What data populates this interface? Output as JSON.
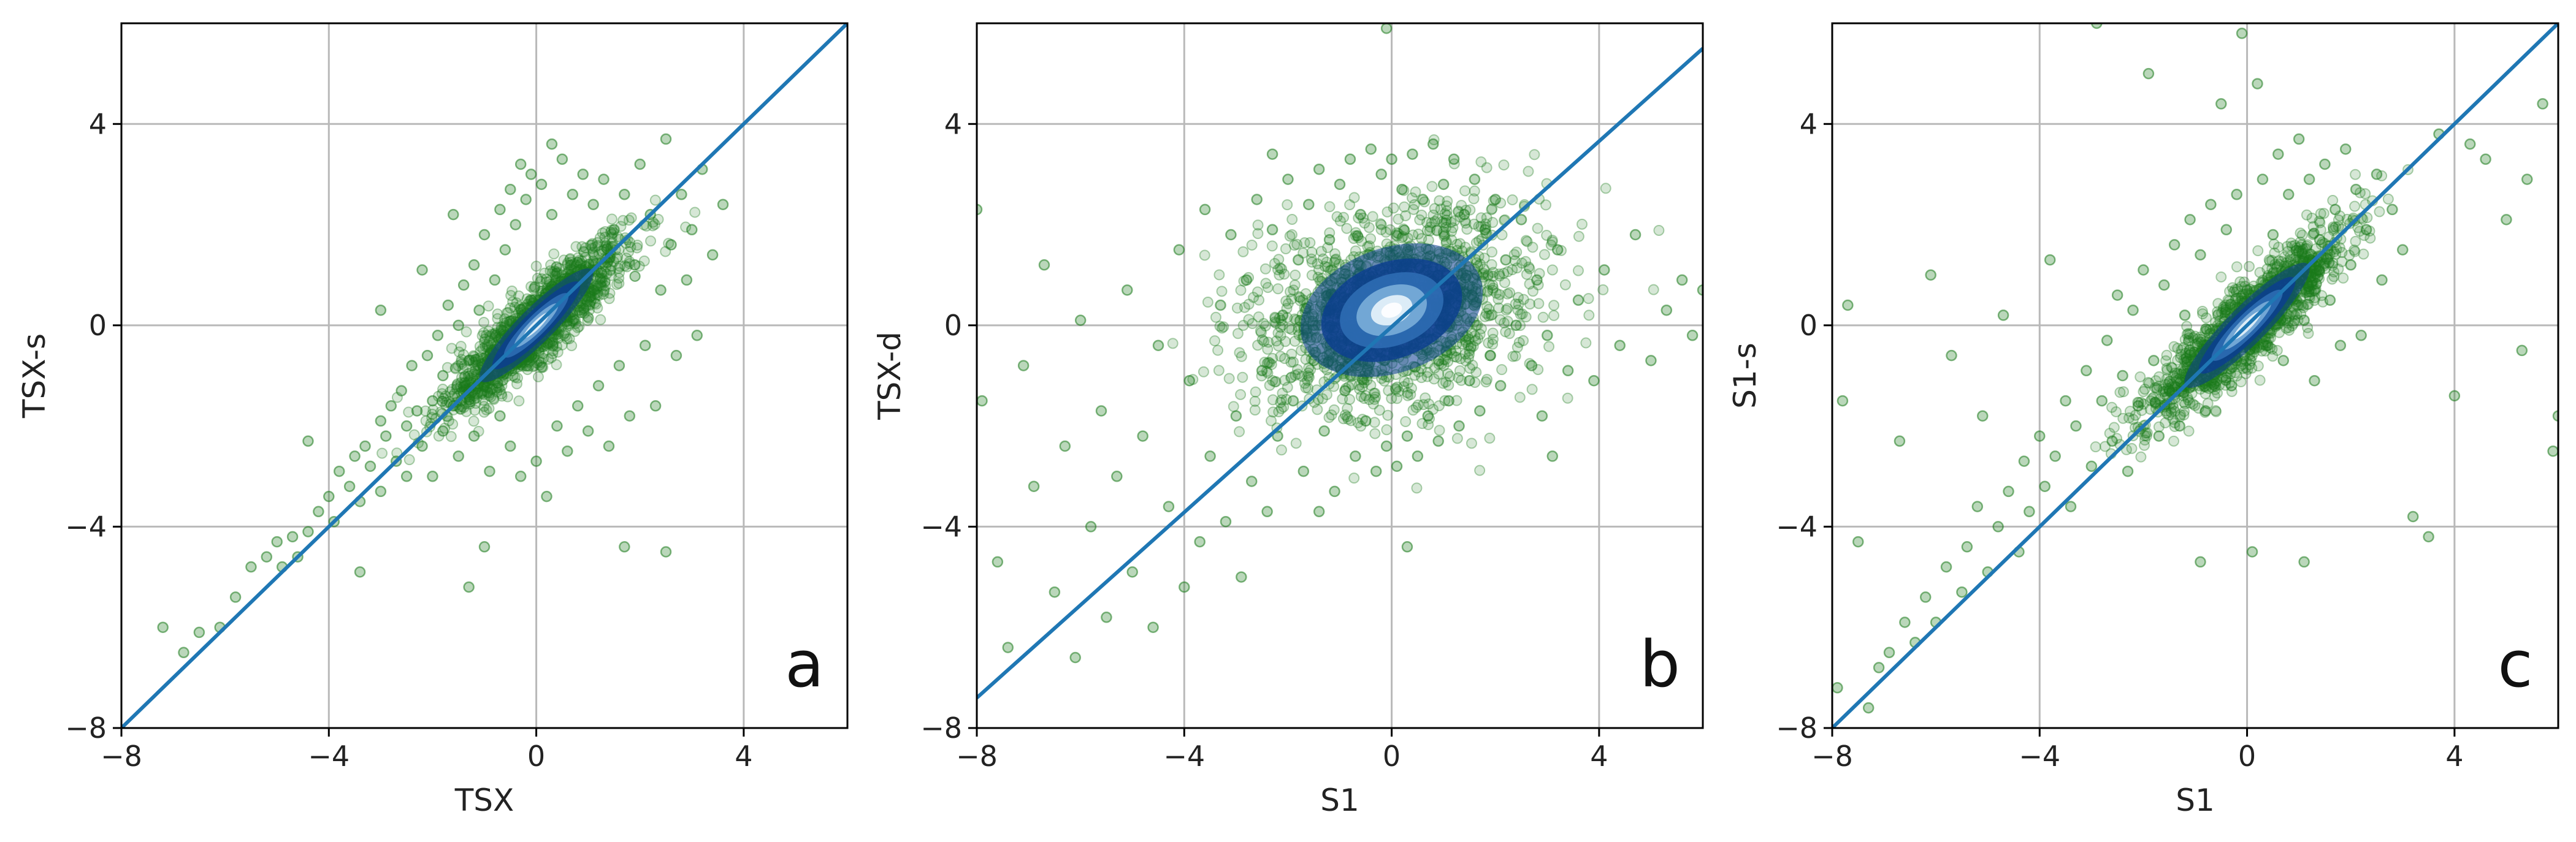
{
  "chart_data": [
    {
      "type": "scatter",
      "panel_label": "a",
      "xlabel": "TSX",
      "ylabel": "TSX-s",
      "xlim": [
        -8,
        6
      ],
      "ylim": [
        -8,
        6
      ],
      "xticks": [
        -8,
        -4,
        0,
        4
      ],
      "yticks": [
        -8,
        -4,
        0,
        4
      ],
      "grid": true,
      "reference_line": {
        "x": [
          -8,
          6
        ],
        "y": [
          -8,
          6
        ],
        "color": "#1f77b4"
      },
      "point_color": "#1a7a1a",
      "density_colors": [
        "#0b3d91",
        "#2f6eb5",
        "#7fb3dc",
        "#e8f4fb"
      ],
      "density_center": [
        0,
        0
      ],
      "density_correlation": 0.9,
      "density_spread": [
        0.5,
        0.5
      ],
      "points": [
        [
          -7.2,
          -6.0
        ],
        [
          -6.8,
          -6.5
        ],
        [
          -6.5,
          -6.1
        ],
        [
          -6.1,
          -6.0
        ],
        [
          -5.8,
          -5.4
        ],
        [
          -5.5,
          -4.8
        ],
        [
          -5.2,
          -4.6
        ],
        [
          -5.0,
          -4.3
        ],
        [
          -4.9,
          -4.8
        ],
        [
          -4.7,
          -4.2
        ],
        [
          -4.6,
          -4.6
        ],
        [
          -4.4,
          -4.1
        ],
        [
          -4.2,
          -3.7
        ],
        [
          -4.0,
          -3.4
        ],
        [
          -3.9,
          -3.9
        ],
        [
          -3.8,
          -2.9
        ],
        [
          -3.6,
          -3.2
        ],
        [
          -3.5,
          -2.6
        ],
        [
          -3.4,
          -3.5
        ],
        [
          -3.3,
          -2.4
        ],
        [
          -3.2,
          -2.8
        ],
        [
          -3.0,
          -1.9
        ],
        [
          -3.0,
          -3.3
        ],
        [
          -2.9,
          -2.2
        ],
        [
          -2.8,
          -1.6
        ],
        [
          -2.7,
          -2.7
        ],
        [
          -2.6,
          -1.3
        ],
        [
          -2.5,
          -2.0
        ],
        [
          -2.5,
          -3.0
        ],
        [
          -2.4,
          -0.8
        ],
        [
          -2.3,
          -1.7
        ],
        [
          -2.2,
          -2.4
        ],
        [
          -2.1,
          -0.6
        ],
        [
          -2.0,
          -1.5
        ],
        [
          -2.0,
          -3.0
        ],
        [
          -1.9,
          -0.2
        ],
        [
          -1.8,
          -1.0
        ],
        [
          -1.8,
          -2.1
        ],
        [
          -1.7,
          0.4
        ],
        [
          -1.6,
          -1.6
        ],
        [
          -1.5,
          0.0
        ],
        [
          -1.5,
          -2.6
        ],
        [
          -1.4,
          0.8
        ],
        [
          -1.3,
          -0.7
        ],
        [
          -1.2,
          1.2
        ],
        [
          -1.2,
          -2.2
        ],
        [
          -1.1,
          0.3
        ],
        [
          -1.0,
          -1.2
        ],
        [
          -1.0,
          1.8
        ],
        [
          -0.9,
          -2.9
        ],
        [
          -0.8,
          0.9
        ],
        [
          -0.7,
          2.3
        ],
        [
          -0.7,
          -1.8
        ],
        [
          -0.6,
          1.5
        ],
        [
          -0.5,
          2.7
        ],
        [
          -0.5,
          -2.4
        ],
        [
          -0.4,
          2.0
        ],
        [
          -0.3,
          3.2
        ],
        [
          -0.3,
          -3.0
        ],
        [
          -0.2,
          2.5
        ],
        [
          -0.1,
          3.0
        ],
        [
          0.0,
          -2.7
        ],
        [
          0.1,
          2.8
        ],
        [
          0.2,
          -3.4
        ],
        [
          0.3,
          2.2
        ],
        [
          0.4,
          -2.0
        ],
        [
          0.5,
          3.3
        ],
        [
          0.6,
          -2.5
        ],
        [
          0.7,
          2.6
        ],
        [
          0.8,
          -1.6
        ],
        [
          0.9,
          3.0
        ],
        [
          1.0,
          -2.1
        ],
        [
          1.1,
          2.4
        ],
        [
          1.2,
          -1.2
        ],
        [
          1.3,
          2.9
        ],
        [
          1.4,
          -2.4
        ],
        [
          1.5,
          1.9
        ],
        [
          1.6,
          -0.8
        ],
        [
          1.7,
          2.6
        ],
        [
          1.8,
          -1.8
        ],
        [
          1.9,
          1.2
        ],
        [
          2.0,
          3.2
        ],
        [
          2.1,
          -0.4
        ],
        [
          2.2,
          2.2
        ],
        [
          2.3,
          -1.6
        ],
        [
          2.4,
          0.7
        ],
        [
          2.5,
          3.7
        ],
        [
          2.6,
          1.6
        ],
        [
          2.7,
          -0.6
        ],
        [
          2.8,
          2.6
        ],
        [
          2.9,
          0.9
        ],
        [
          3.0,
          1.9
        ],
        [
          3.1,
          -0.2
        ],
        [
          3.2,
          3.1
        ],
        [
          3.4,
          1.4
        ],
        [
          3.6,
          2.4
        ],
        [
          2.5,
          -4.5
        ],
        [
          1.7,
          -4.4
        ],
        [
          0.3,
          3.6
        ],
        [
          -1.0,
          -4.4
        ],
        [
          -1.3,
          -5.2
        ],
        [
          -3.4,
          -4.9
        ],
        [
          -4.4,
          -2.3
        ],
        [
          -2.2,
          1.1
        ],
        [
          -1.6,
          2.2
        ],
        [
          -3.0,
          0.3
        ]
      ]
    },
    {
      "type": "scatter",
      "panel_label": "b",
      "xlabel": "S1",
      "ylabel": "TSX-d",
      "xlim": [
        -8,
        6
      ],
      "ylim": [
        -8,
        6
      ],
      "xticks": [
        -8,
        -4,
        0,
        4
      ],
      "yticks": [
        -8,
        -4,
        0,
        4
      ],
      "grid": true,
      "reference_line": {
        "x": [
          -8,
          6
        ],
        "y": [
          -7.4,
          5.5
        ],
        "color": "#1f77b4"
      },
      "point_color": "#1a7a1a",
      "density_colors": [
        "#0b3d91",
        "#2f6eb5",
        "#7fb3dc",
        "#e8f4fb"
      ],
      "density_center": [
        0,
        0.3
      ],
      "density_correlation": 0.25,
      "density_spread": [
        0.8,
        0.6
      ],
      "points": [
        [
          -8.0,
          2.3
        ],
        [
          -7.9,
          -1.5
        ],
        [
          -7.6,
          -4.7
        ],
        [
          -7.4,
          -6.4
        ],
        [
          -7.1,
          -0.8
        ],
        [
          -6.9,
          -3.2
        ],
        [
          -6.7,
          1.2
        ],
        [
          -6.5,
          -5.3
        ],
        [
          -6.3,
          -2.4
        ],
        [
          -6.1,
          -6.6
        ],
        [
          -6.0,
          0.1
        ],
        [
          -5.8,
          -4.0
        ],
        [
          -5.6,
          -1.7
        ],
        [
          -5.5,
          -5.8
        ],
        [
          -5.3,
          -3.0
        ],
        [
          -5.1,
          0.7
        ],
        [
          -5.0,
          -4.9
        ],
        [
          -4.8,
          -2.2
        ],
        [
          -4.6,
          -6.0
        ],
        [
          -4.5,
          -0.4
        ],
        [
          -4.3,
          -3.6
        ],
        [
          -4.1,
          1.5
        ],
        [
          -4.0,
          -5.2
        ],
        [
          -3.9,
          -1.1
        ],
        [
          -3.7,
          -4.3
        ],
        [
          -3.6,
          2.3
        ],
        [
          -3.5,
          -2.6
        ],
        [
          -3.3,
          0.4
        ],
        [
          -3.2,
          -3.9
        ],
        [
          -3.1,
          1.8
        ],
        [
          -3.0,
          -1.8
        ],
        [
          -2.9,
          -5.0
        ],
        [
          -2.8,
          0.9
        ],
        [
          -2.7,
          -3.1
        ],
        [
          -2.6,
          2.5
        ],
        [
          -2.5,
          -0.9
        ],
        [
          -2.4,
          -3.7
        ],
        [
          -2.3,
          1.9
        ],
        [
          -2.2,
          -2.2
        ],
        [
          -2.1,
          0.2
        ],
        [
          -2.0,
          2.9
        ],
        [
          -1.9,
          -1.5
        ],
        [
          -1.8,
          1.3
        ],
        [
          -1.7,
          -2.9
        ],
        [
          -1.6,
          2.4
        ],
        [
          -1.5,
          -0.7
        ],
        [
          -1.4,
          3.1
        ],
        [
          -1.3,
          -2.1
        ],
        [
          -1.2,
          1.7
        ],
        [
          -1.1,
          -3.3
        ],
        [
          -1.0,
          2.8
        ],
        [
          -0.9,
          -1.3
        ],
        [
          -0.8,
          3.3
        ],
        [
          -0.7,
          -2.6
        ],
        [
          -0.6,
          2.2
        ],
        [
          -0.5,
          -1.9
        ],
        [
          -0.4,
          3.5
        ],
        [
          -0.3,
          -2.9
        ],
        [
          -0.2,
          3.0
        ],
        [
          -0.1,
          -2.4
        ],
        [
          0.0,
          3.3
        ],
        [
          0.1,
          -2.8
        ],
        [
          0.2,
          2.7
        ],
        [
          0.3,
          -2.2
        ],
        [
          0.4,
          3.4
        ],
        [
          0.5,
          -2.6
        ],
        [
          0.6,
          2.5
        ],
        [
          0.7,
          -1.8
        ],
        [
          0.8,
          3.6
        ],
        [
          0.9,
          -2.3
        ],
        [
          1.0,
          2.8
        ],
        [
          1.1,
          -1.5
        ],
        [
          1.2,
          3.3
        ],
        [
          1.3,
          -2.0
        ],
        [
          1.4,
          2.2
        ],
        [
          1.5,
          -1.1
        ],
        [
          1.6,
          2.9
        ],
        [
          1.7,
          -1.7
        ],
        [
          1.8,
          1.9
        ],
        [
          1.9,
          -0.6
        ],
        [
          2.0,
          2.5
        ],
        [
          2.1,
          -1.2
        ],
        [
          2.2,
          1.3
        ],
        [
          2.4,
          0.0
        ],
        [
          2.5,
          2.1
        ],
        [
          2.7,
          -0.8
        ],
        [
          2.8,
          0.9
        ],
        [
          3.0,
          -0.2
        ],
        [
          3.2,
          1.5
        ],
        [
          3.4,
          -0.9
        ],
        [
          3.6,
          0.5
        ],
        [
          3.9,
          -1.1
        ],
        [
          4.1,
          1.1
        ],
        [
          4.4,
          -0.4
        ],
        [
          4.7,
          1.8
        ],
        [
          5.0,
          -0.7
        ],
        [
          5.3,
          0.3
        ],
        [
          5.6,
          0.9
        ],
        [
          5.8,
          -0.2
        ],
        [
          6.0,
          0.7
        ],
        [
          3.1,
          -2.6
        ],
        [
          -0.1,
          5.9
        ],
        [
          0.3,
          -4.4
        ],
        [
          -1.4,
          -3.7
        ],
        [
          2.9,
          -1.8
        ],
        [
          -2.3,
          3.4
        ]
      ]
    },
    {
      "type": "scatter",
      "panel_label": "c",
      "xlabel": "S1",
      "ylabel": "S1-s",
      "xlim": [
        -8,
        6
      ],
      "ylim": [
        -8,
        6
      ],
      "xticks": [
        -8,
        -4,
        0,
        4
      ],
      "yticks": [
        -8,
        -4,
        0,
        4
      ],
      "grid": true,
      "reference_line": {
        "x": [
          -8,
          6
        ],
        "y": [
          -8,
          6
        ],
        "color": "#1f77b4"
      },
      "point_color": "#1a7a1a",
      "density_colors": [
        "#0b3d91",
        "#2f6eb5",
        "#7fb3dc",
        "#e8f4fb"
      ],
      "density_center": [
        0,
        0
      ],
      "density_correlation": 0.9,
      "density_spread": [
        0.55,
        0.55
      ],
      "points": [
        [
          -7.9,
          -7.2
        ],
        [
          -7.8,
          -1.5
        ],
        [
          -7.7,
          0.4
        ],
        [
          -7.5,
          -4.3
        ],
        [
          -7.3,
          -7.6
        ],
        [
          -7.1,
          -6.8
        ],
        [
          -6.9,
          -6.5
        ],
        [
          -6.7,
          -2.3
        ],
        [
          -6.6,
          -5.9
        ],
        [
          -6.4,
          -6.3
        ],
        [
          -6.2,
          -5.4
        ],
        [
          -6.1,
          1.0
        ],
        [
          -6.0,
          -5.9
        ],
        [
          -5.8,
          -4.8
        ],
        [
          -5.7,
          -0.6
        ],
        [
          -5.5,
          -5.3
        ],
        [
          -5.4,
          -4.4
        ],
        [
          -5.2,
          -3.6
        ],
        [
          -5.1,
          -1.8
        ],
        [
          -5.0,
          -4.9
        ],
        [
          -4.8,
          -4.0
        ],
        [
          -4.7,
          0.2
        ],
        [
          -4.6,
          -3.3
        ],
        [
          -4.4,
          -4.5
        ],
        [
          -4.3,
          -2.7
        ],
        [
          -4.2,
          -3.7
        ],
        [
          -4.0,
          -2.2
        ],
        [
          -3.9,
          -3.2
        ],
        [
          -3.8,
          1.3
        ],
        [
          -3.7,
          -2.6
        ],
        [
          -3.5,
          -1.5
        ],
        [
          -3.4,
          -3.6
        ],
        [
          -3.3,
          -2.0
        ],
        [
          -3.1,
          -0.9
        ],
        [
          -3.0,
          -2.8
        ],
        [
          -2.9,
          6.0
        ],
        [
          -2.8,
          -1.5
        ],
        [
          -2.7,
          -0.3
        ],
        [
          -2.6,
          -2.3
        ],
        [
          -2.5,
          0.6
        ],
        [
          -2.4,
          -1.0
        ],
        [
          -2.3,
          -2.9
        ],
        [
          -2.2,
          0.3
        ],
        [
          -2.1,
          -1.6
        ],
        [
          -2.0,
          1.1
        ],
        [
          -1.9,
          5.0
        ],
        [
          -1.8,
          -0.7
        ],
        [
          -1.7,
          -2.2
        ],
        [
          -1.6,
          0.8
        ],
        [
          -1.5,
          -1.3
        ],
        [
          -1.4,
          1.6
        ],
        [
          -1.3,
          -2.0
        ],
        [
          -1.2,
          0.2
        ],
        [
          -1.1,
          2.1
        ],
        [
          -1.0,
          -1.0
        ],
        [
          -0.9,
          1.4
        ],
        [
          -0.8,
          -1.7
        ],
        [
          -0.7,
          2.4
        ],
        [
          -0.6,
          -0.6
        ],
        [
          -0.5,
          4.4
        ],
        [
          -0.4,
          1.9
        ],
        [
          -0.3,
          -1.2
        ],
        [
          -0.2,
          2.6
        ],
        [
          -0.1,
          5.8
        ],
        [
          0.0,
          0.7
        ],
        [
          0.1,
          -4.5
        ],
        [
          0.2,
          4.8
        ],
        [
          0.3,
          2.9
        ],
        [
          0.4,
          -0.4
        ],
        [
          0.5,
          1.8
        ],
        [
          0.6,
          3.4
        ],
        [
          0.7,
          -0.7
        ],
        [
          0.8,
          2.6
        ],
        [
          0.9,
          1.1
        ],
        [
          1.0,
          3.7
        ],
        [
          1.1,
          0.1
        ],
        [
          1.2,
          2.9
        ],
        [
          1.3,
          -1.1
        ],
        [
          1.4,
          1.7
        ],
        [
          1.5,
          3.2
        ],
        [
          1.6,
          0.5
        ],
        [
          1.7,
          2.3
        ],
        [
          1.8,
          -0.4
        ],
        [
          1.9,
          3.5
        ],
        [
          2.0,
          1.2
        ],
        [
          2.1,
          2.7
        ],
        [
          2.2,
          -0.2
        ],
        [
          2.3,
          1.9
        ],
        [
          2.5,
          3.0
        ],
        [
          2.6,
          0.9
        ],
        [
          2.8,
          2.3
        ],
        [
          3.0,
          1.5
        ],
        [
          3.2,
          -3.8
        ],
        [
          3.5,
          -4.2
        ],
        [
          3.7,
          3.8
        ],
        [
          4.0,
          -1.4
        ],
        [
          4.3,
          3.6
        ],
        [
          4.6,
          3.3
        ],
        [
          5.0,
          2.1
        ],
        [
          5.4,
          2.9
        ],
        [
          5.7,
          4.4
        ],
        [
          5.9,
          -2.5
        ],
        [
          6.0,
          -1.8
        ],
        [
          5.3,
          -0.5
        ],
        [
          1.1,
          -4.7
        ],
        [
          -0.9,
          -4.7
        ]
      ]
    }
  ]
}
